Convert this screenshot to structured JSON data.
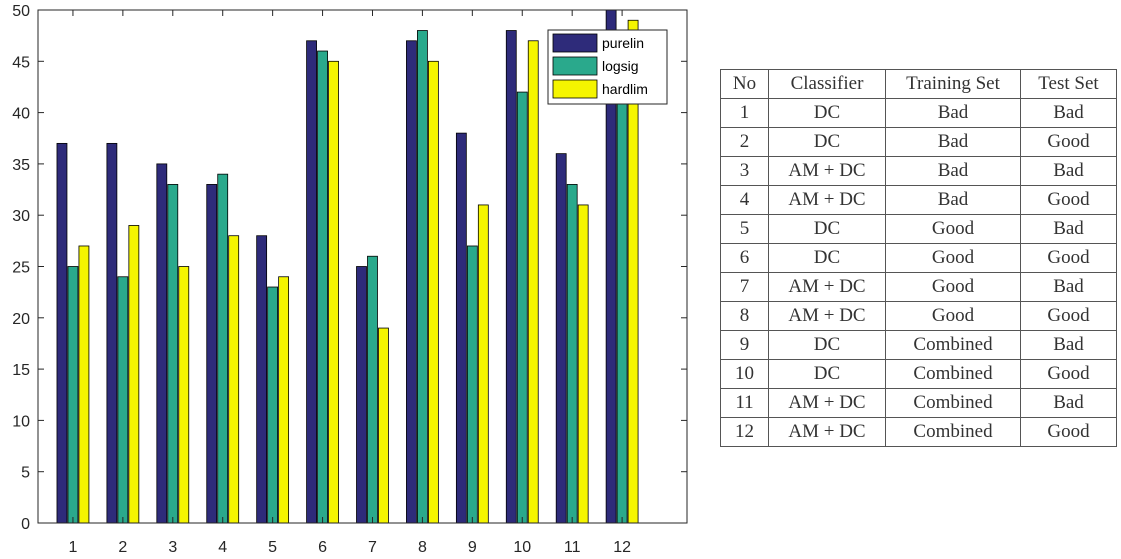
{
  "chart_data": {
    "type": "bar",
    "categories": [
      "1",
      "2",
      "3",
      "4",
      "5",
      "6",
      "7",
      "8",
      "9",
      "10",
      "11",
      "12"
    ],
    "series": [
      {
        "name": "purelin",
        "color": "#2e2b7a",
        "values": [
          37,
          37,
          35,
          33,
          28,
          47,
          25,
          47,
          38,
          48,
          36,
          50
        ]
      },
      {
        "name": "logsig",
        "color": "#2aa98c",
        "values": [
          25,
          24,
          33,
          34,
          23,
          46,
          26,
          48,
          27,
          42,
          33,
          41
        ]
      },
      {
        "name": "hardlim",
        "color": "#f5f500",
        "values": [
          27,
          29,
          25,
          28,
          24,
          45,
          19,
          45,
          31,
          47,
          31,
          49
        ]
      }
    ],
    "ylim": [
      0,
      50
    ],
    "yticks": [
      "0",
      "5",
      "10",
      "15",
      "20",
      "25",
      "30",
      "35",
      "40",
      "45",
      "50"
    ],
    "xlim": [
      0.3,
      13.3
    ],
    "legend_position": "top-right",
    "grid": false
  },
  "table": {
    "headers": [
      "No",
      "Classifier",
      "Training Set",
      "Test Set"
    ],
    "rows": [
      [
        "1",
        "DC",
        "Bad",
        "Bad"
      ],
      [
        "2",
        "DC",
        "Bad",
        "Good"
      ],
      [
        "3",
        "AM + DC",
        "Bad",
        "Bad"
      ],
      [
        "4",
        "AM + DC",
        "Bad",
        "Good"
      ],
      [
        "5",
        "DC",
        "Good",
        "Bad"
      ],
      [
        "6",
        "DC",
        "Good",
        "Good"
      ],
      [
        "7",
        "AM + DC",
        "Good",
        "Bad"
      ],
      [
        "8",
        "AM + DC",
        "Good",
        "Good"
      ],
      [
        "9",
        "DC",
        "Combined",
        "Bad"
      ],
      [
        "10",
        "DC",
        "Combined",
        "Good"
      ],
      [
        "11",
        "AM + DC",
        "Combined",
        "Bad"
      ],
      [
        "12",
        "AM + DC",
        "Combined",
        "Good"
      ]
    ]
  }
}
